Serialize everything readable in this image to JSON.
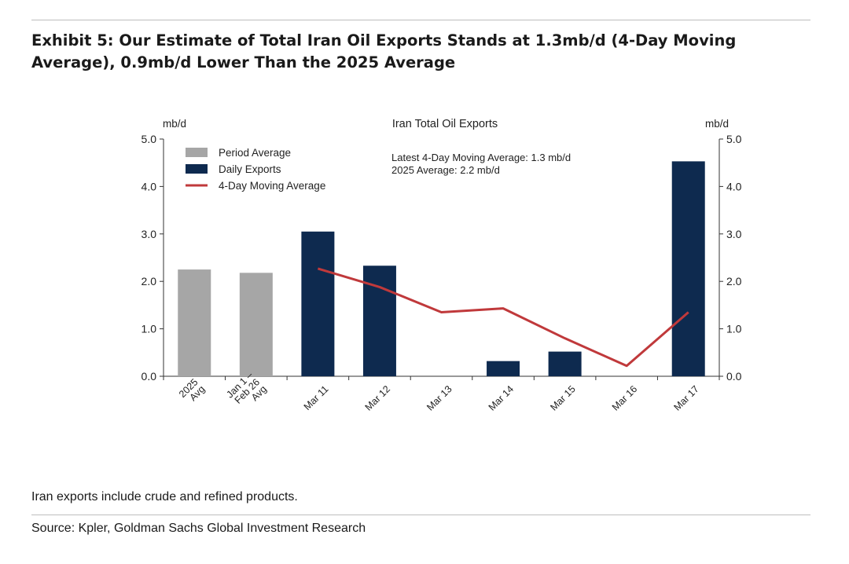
{
  "header": {
    "title": "Exhibit 5: Our Estimate of Total Iran Oil Exports Stands at 1.3mb/d (4-Day Moving Average), 0.9mb/d Lower Than the 2025 Average"
  },
  "footer": {
    "note": "Iran exports include crude and refined products.",
    "source": "Source: Kpler, Goldman Sachs Global Investment Research"
  },
  "chart_data": {
    "type": "bar",
    "title": "Iran Total Oil Exports",
    "ylabel_left": "mb/d",
    "ylabel_right": "mb/d",
    "ylim": [
      0,
      5
    ],
    "yticks": [
      "0.0",
      "1.0",
      "2.0",
      "3.0",
      "4.0",
      "5.0"
    ],
    "categories": [
      [
        "2025",
        "Avg"
      ],
      [
        "Jan 1 –",
        "Feb 26",
        "Avg"
      ],
      [
        "Mar 11"
      ],
      [
        "Mar 12"
      ],
      [
        "Mar 13"
      ],
      [
        "Mar 14"
      ],
      [
        "Mar 15"
      ],
      [
        "Mar 16"
      ],
      [
        "Mar 17"
      ]
    ],
    "series": [
      {
        "name": "Period Average",
        "kind": "bar",
        "color": "#a6a6a6",
        "values": [
          2.25,
          2.18,
          null,
          null,
          null,
          null,
          null,
          null,
          null
        ]
      },
      {
        "name": "Daily Exports",
        "kind": "bar",
        "color": "#0e2a4f",
        "values": [
          null,
          null,
          3.05,
          2.33,
          0.0,
          0.32,
          0.52,
          0.0,
          4.53
        ]
      },
      {
        "name": "4-Day Moving Average",
        "kind": "line",
        "color": "#c0393b",
        "values": [
          null,
          null,
          2.27,
          1.88,
          1.35,
          1.43,
          0.8,
          0.22,
          1.35
        ]
      }
    ],
    "annotations": [
      "Latest 4-Day Moving Average: 1.3 mb/d",
      "2025 Average: 2.2 mb/d"
    ],
    "legend_position": "top-left"
  }
}
